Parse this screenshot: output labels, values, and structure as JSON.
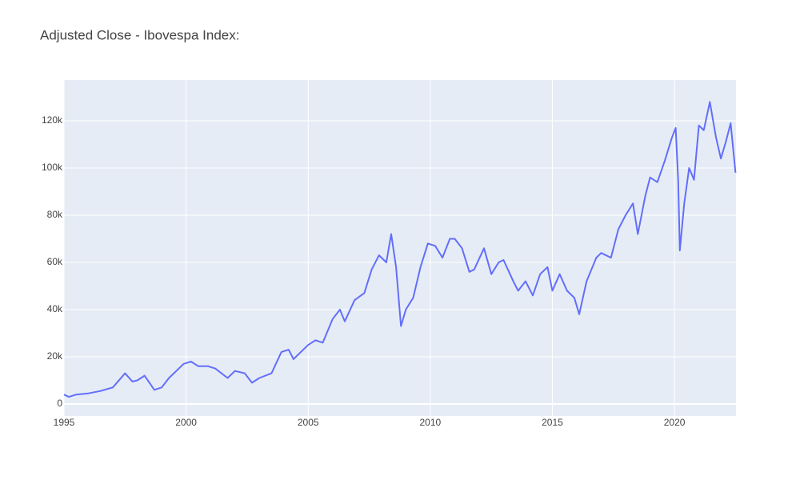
{
  "chart_data": {
    "type": "line",
    "title": "Adjusted Close - Ibovespa Index:",
    "x": [
      1995.0,
      1995.2,
      1995.5,
      1996.0,
      1996.5,
      1997.0,
      1997.5,
      1997.8,
      1998.0,
      1998.3,
      1998.7,
      1999.0,
      1999.3,
      1999.9,
      2000.2,
      2000.5,
      2000.9,
      2001.2,
      2001.7,
      2002.0,
      2002.4,
      2002.7,
      2003.0,
      2003.5,
      2003.9,
      2004.2,
      2004.4,
      2005.0,
      2005.3,
      2005.6,
      2006.0,
      2006.3,
      2006.5,
      2006.9,
      2007.3,
      2007.6,
      2007.9,
      2008.2,
      2008.4,
      2008.6,
      2008.8,
      2009.0,
      2009.3,
      2009.6,
      2009.9,
      2010.2,
      2010.5,
      2010.8,
      2011.0,
      2011.3,
      2011.6,
      2011.8,
      2012.2,
      2012.5,
      2012.8,
      2013.0,
      2013.4,
      2013.6,
      2013.9,
      2014.2,
      2014.5,
      2014.8,
      2015.0,
      2015.3,
      2015.6,
      2015.9,
      2016.1,
      2016.4,
      2016.8,
      2017.0,
      2017.4,
      2017.7,
      2018.0,
      2018.3,
      2018.5,
      2018.8,
      2019.0,
      2019.3,
      2019.6,
      2019.9,
      2020.05,
      2020.15,
      2020.22,
      2020.4,
      2020.6,
      2020.8,
      2021.0,
      2021.2,
      2021.45,
      2021.7,
      2021.9,
      2022.1,
      2022.3,
      2022.5
    ],
    "series": [
      {
        "name": "Adj Close",
        "color": "#636efa",
        "values": [
          4000,
          3000,
          4000,
          4500,
          5500,
          7000,
          13000,
          9500,
          10000,
          12000,
          6000,
          7000,
          11000,
          17000,
          18000,
          16000,
          16000,
          15000,
          11000,
          14000,
          13000,
          9000,
          11000,
          13000,
          22000,
          23000,
          19000,
          25000,
          27000,
          26000,
          36000,
          40000,
          35000,
          44000,
          47000,
          57000,
          63000,
          60000,
          72000,
          58000,
          33000,
          40000,
          45000,
          58000,
          68000,
          67000,
          62000,
          70000,
          70000,
          66000,
          56000,
          57000,
          66000,
          55000,
          60000,
          61000,
          52000,
          48000,
          52000,
          46000,
          55000,
          58000,
          48000,
          55000,
          48000,
          45000,
          38000,
          52000,
          62000,
          64000,
          62000,
          74000,
          80000,
          85000,
          72000,
          88000,
          96000,
          94000,
          103000,
          113000,
          117000,
          95000,
          65000,
          85000,
          100000,
          95000,
          118000,
          116000,
          128000,
          113000,
          104000,
          111000,
          119000,
          98000
        ]
      }
    ],
    "xlim": [
      1995,
      2022.52
    ],
    "xticks": [
      1995,
      2000,
      2005,
      2010,
      2015,
      2020
    ],
    "ylim": [
      -5100,
      137300
    ],
    "yticks": [
      0,
      {
        "value": 20000,
        "label": "20k"
      },
      {
        "value": 40000,
        "label": "40k"
      },
      {
        "value": 60000,
        "label": "60k"
      },
      {
        "value": 80000,
        "label": "80k"
      },
      {
        "value": 100000,
        "label": "100k"
      },
      {
        "value": 120000,
        "label": "120k"
      }
    ],
    "grid": true
  }
}
